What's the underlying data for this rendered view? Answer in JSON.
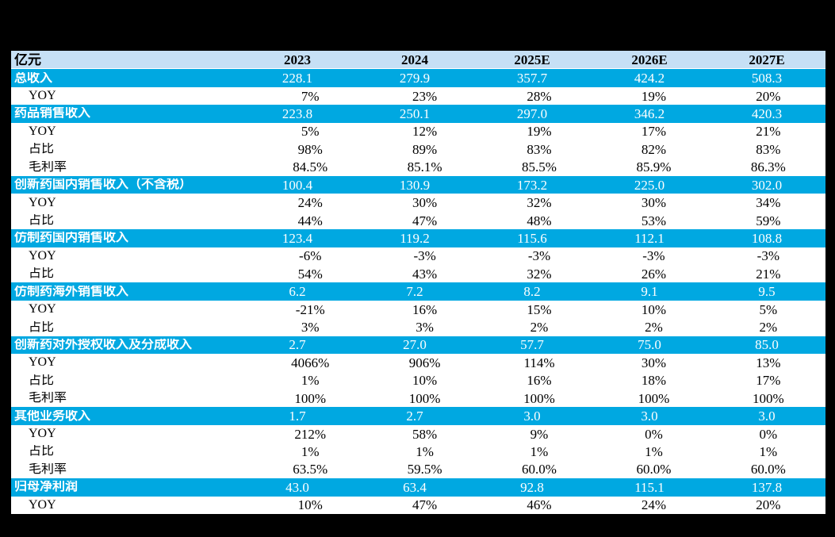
{
  "colors": {
    "page_bg": "#000000",
    "header_row_bg": "#c6e0f5",
    "section_row_bg": "#00a8e1",
    "section_row_text": "#ffffff",
    "body_text": "#000000"
  },
  "table": {
    "unit_label": "亿元",
    "columns": [
      "2023",
      "2024",
      "2025E",
      "2026E",
      "2027E"
    ],
    "rows": [
      {
        "type": "section",
        "label": "总收入",
        "values": [
          "228.1",
          "279.9",
          "357.7",
          "424.2",
          "508.3"
        ]
      },
      {
        "type": "sub",
        "label": "YOY",
        "values": [
          "7%",
          "23%",
          "28%",
          "19%",
          "20%"
        ]
      },
      {
        "type": "section",
        "label": "药品销售收入",
        "values": [
          "223.8",
          "250.1",
          "297.0",
          "346.2",
          "420.3"
        ]
      },
      {
        "type": "sub",
        "label": "YOY",
        "values": [
          "5%",
          "12%",
          "19%",
          "17%",
          "21%"
        ]
      },
      {
        "type": "sub",
        "label": "占比",
        "values": [
          "98%",
          "89%",
          "83%",
          "82%",
          "83%"
        ]
      },
      {
        "type": "sub",
        "label": "毛利率",
        "values": [
          "84.5%",
          "85.1%",
          "85.5%",
          "85.9%",
          "86.3%"
        ]
      },
      {
        "type": "section",
        "label": "创新药国内销售收入（不含税）",
        "values": [
          "100.4",
          "130.9",
          "173.2",
          "225.0",
          "302.0"
        ]
      },
      {
        "type": "sub",
        "label": "YOY",
        "values": [
          "24%",
          "30%",
          "32%",
          "30%",
          "34%"
        ]
      },
      {
        "type": "sub",
        "label": "占比",
        "values": [
          "44%",
          "47%",
          "48%",
          "53%",
          "59%"
        ]
      },
      {
        "type": "section",
        "label": "仿制药国内销售收入",
        "values": [
          "123.4",
          "119.2",
          "115.6",
          "112.1",
          "108.8"
        ]
      },
      {
        "type": "sub",
        "label": "YOY",
        "values": [
          "-6%",
          "-3%",
          "-3%",
          "-3%",
          "-3%"
        ]
      },
      {
        "type": "sub",
        "label": "占比",
        "values": [
          "54%",
          "43%",
          "32%",
          "26%",
          "21%"
        ]
      },
      {
        "type": "section",
        "label": "仿制药海外销售收入",
        "values": [
          "6.2",
          "7.2",
          "8.2",
          "9.1",
          "9.5"
        ]
      },
      {
        "type": "sub",
        "label": "YOY",
        "values": [
          "-21%",
          "16%",
          "15%",
          "10%",
          "5%"
        ]
      },
      {
        "type": "sub",
        "label": "占比",
        "values": [
          "3%",
          "3%",
          "2%",
          "2%",
          "2%"
        ]
      },
      {
        "type": "section",
        "label": "创新药对外授权收入及分成收入",
        "values": [
          "2.7",
          "27.0",
          "57.7",
          "75.0",
          "85.0"
        ]
      },
      {
        "type": "sub",
        "label": "YOY",
        "values": [
          "4066%",
          "906%",
          "114%",
          "30%",
          "13%"
        ]
      },
      {
        "type": "sub",
        "label": "占比",
        "values": [
          "1%",
          "10%",
          "16%",
          "18%",
          "17%"
        ]
      },
      {
        "type": "sub",
        "label": "毛利率",
        "values": [
          "100%",
          "100%",
          "100%",
          "100%",
          "100%"
        ]
      },
      {
        "type": "section",
        "label": "其他业务收入",
        "values": [
          "1.7",
          "2.7",
          "3.0",
          "3.0",
          "3.0"
        ]
      },
      {
        "type": "sub",
        "label": "YOY",
        "values": [
          "212%",
          "58%",
          "9%",
          "0%",
          "0%"
        ]
      },
      {
        "type": "sub",
        "label": "占比",
        "values": [
          "1%",
          "1%",
          "1%",
          "1%",
          "1%"
        ]
      },
      {
        "type": "sub",
        "label": "毛利率",
        "values": [
          "63.5%",
          "59.5%",
          "60.0%",
          "60.0%",
          "60.0%"
        ]
      },
      {
        "type": "section",
        "label": "归母净利润",
        "values": [
          "43.0",
          "63.4",
          "92.8",
          "115.1",
          "137.8"
        ]
      },
      {
        "type": "sub",
        "label": "YOY",
        "values": [
          "10%",
          "47%",
          "46%",
          "24%",
          "20%"
        ]
      }
    ]
  }
}
